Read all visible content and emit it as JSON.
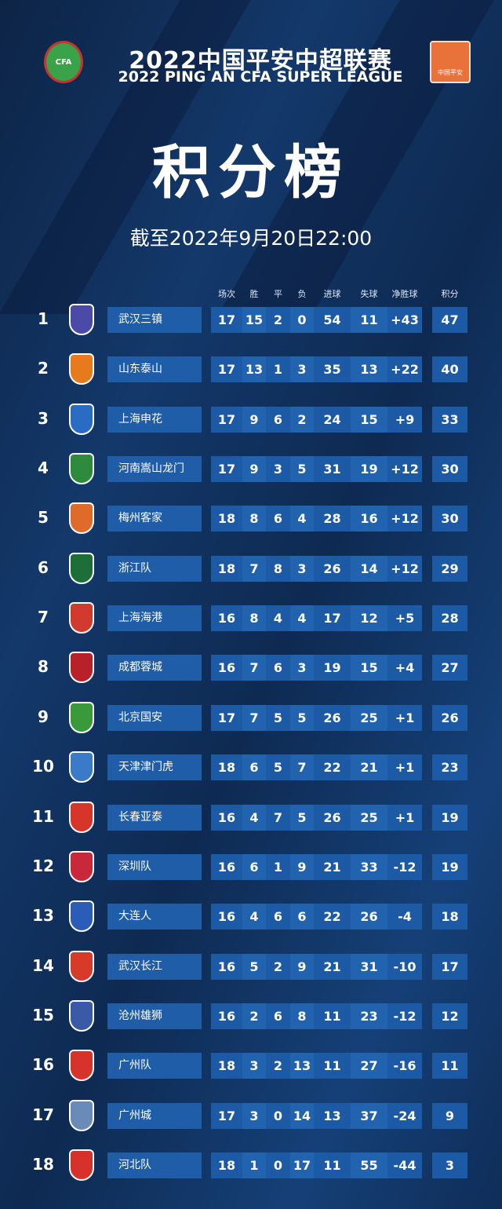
{
  "header": {
    "title_cn": "2022中国平安中超联赛",
    "title_en": "2022 PING AN CFA SUPER LEAGUE",
    "cfa_logo": "CFA",
    "csl_logo": "中国平安",
    "heading": "积分榜",
    "date": "截至2022年9月20日22:00"
  },
  "columns": [
    "场次",
    "胜",
    "平",
    "负",
    "进球",
    "失球",
    "净胜球",
    "积分"
  ],
  "colors": {
    "cell_a": "#1c5aa6",
    "cell_b": "#2263b0",
    "name_bg": "#1f5da8"
  },
  "teams": [
    {
      "rank": "1",
      "name": "武汉三镇",
      "badge_color": "#4b4aa8",
      "stats": [
        "17",
        "15",
        "2",
        "0",
        "54",
        "11",
        "+43"
      ],
      "pts": "47"
    },
    {
      "rank": "2",
      "name": "山东泰山",
      "badge_color": "#e87a1e",
      "stats": [
        "17",
        "13",
        "1",
        "3",
        "35",
        "13",
        "+22"
      ],
      "pts": "40"
    },
    {
      "rank": "3",
      "name": "上海申花",
      "badge_color": "#2a6cc4",
      "stats": [
        "17",
        "9",
        "6",
        "2",
        "24",
        "15",
        "+9"
      ],
      "pts": "33"
    },
    {
      "rank": "4",
      "name": "河南嵩山龙门",
      "badge_color": "#2e8b3e",
      "stats": [
        "17",
        "9",
        "3",
        "5",
        "31",
        "19",
        "+12"
      ],
      "pts": "30"
    },
    {
      "rank": "5",
      "name": "梅州客家",
      "badge_color": "#e06a2a",
      "stats": [
        "18",
        "8",
        "6",
        "4",
        "28",
        "16",
        "+12"
      ],
      "pts": "30"
    },
    {
      "rank": "6",
      "name": "浙江队",
      "badge_color": "#1e6e3a",
      "stats": [
        "18",
        "7",
        "8",
        "3",
        "26",
        "14",
        "+12"
      ],
      "pts": "29"
    },
    {
      "rank": "7",
      "name": "上海海港",
      "badge_color": "#d33a2e",
      "stats": [
        "16",
        "8",
        "4",
        "4",
        "17",
        "12",
        "+5"
      ],
      "pts": "28"
    },
    {
      "rank": "8",
      "name": "成都蓉城",
      "badge_color": "#b8202a",
      "stats": [
        "16",
        "7",
        "6",
        "3",
        "19",
        "15",
        "+4"
      ],
      "pts": "27"
    },
    {
      "rank": "9",
      "name": "北京国安",
      "badge_color": "#3a9a3a",
      "stats": [
        "17",
        "7",
        "5",
        "5",
        "26",
        "25",
        "+1"
      ],
      "pts": "26"
    },
    {
      "rank": "10",
      "name": "天津津门虎",
      "badge_color": "#3a7ac8",
      "stats": [
        "18",
        "6",
        "5",
        "7",
        "22",
        "21",
        "+1"
      ],
      "pts": "23"
    },
    {
      "rank": "11",
      "name": "长春亚泰",
      "badge_color": "#d8352a",
      "stats": [
        "16",
        "4",
        "7",
        "5",
        "26",
        "25",
        "+1"
      ],
      "pts": "19"
    },
    {
      "rank": "12",
      "name": "深圳队",
      "badge_color": "#c8283a",
      "stats": [
        "16",
        "6",
        "1",
        "9",
        "21",
        "33",
        "-12"
      ],
      "pts": "19"
    },
    {
      "rank": "13",
      "name": "大连人",
      "badge_color": "#2a5cb8",
      "stats": [
        "16",
        "4",
        "6",
        "6",
        "22",
        "26",
        "-4"
      ],
      "pts": "18"
    },
    {
      "rank": "14",
      "name": "武汉长江",
      "badge_color": "#d83a2a",
      "stats": [
        "16",
        "5",
        "2",
        "9",
        "21",
        "31",
        "-10"
      ],
      "pts": "17"
    },
    {
      "rank": "15",
      "name": "沧州雄狮",
      "badge_color": "#3a5aa8",
      "stats": [
        "16",
        "2",
        "6",
        "8",
        "11",
        "23",
        "-12"
      ],
      "pts": "12"
    },
    {
      "rank": "16",
      "name": "广州队",
      "badge_color": "#d8332a",
      "stats": [
        "18",
        "3",
        "2",
        "13",
        "11",
        "27",
        "-16"
      ],
      "pts": "11"
    },
    {
      "rank": "17",
      "name": "广州城",
      "badge_color": "#6a8ab8",
      "stats": [
        "17",
        "3",
        "0",
        "14",
        "13",
        "37",
        "-24"
      ],
      "pts": "9"
    },
    {
      "rank": "18",
      "name": "河北队",
      "badge_color": "#d8302a",
      "stats": [
        "18",
        "1",
        "0",
        "17",
        "11",
        "55",
        "-44"
      ],
      "pts": "3"
    }
  ]
}
